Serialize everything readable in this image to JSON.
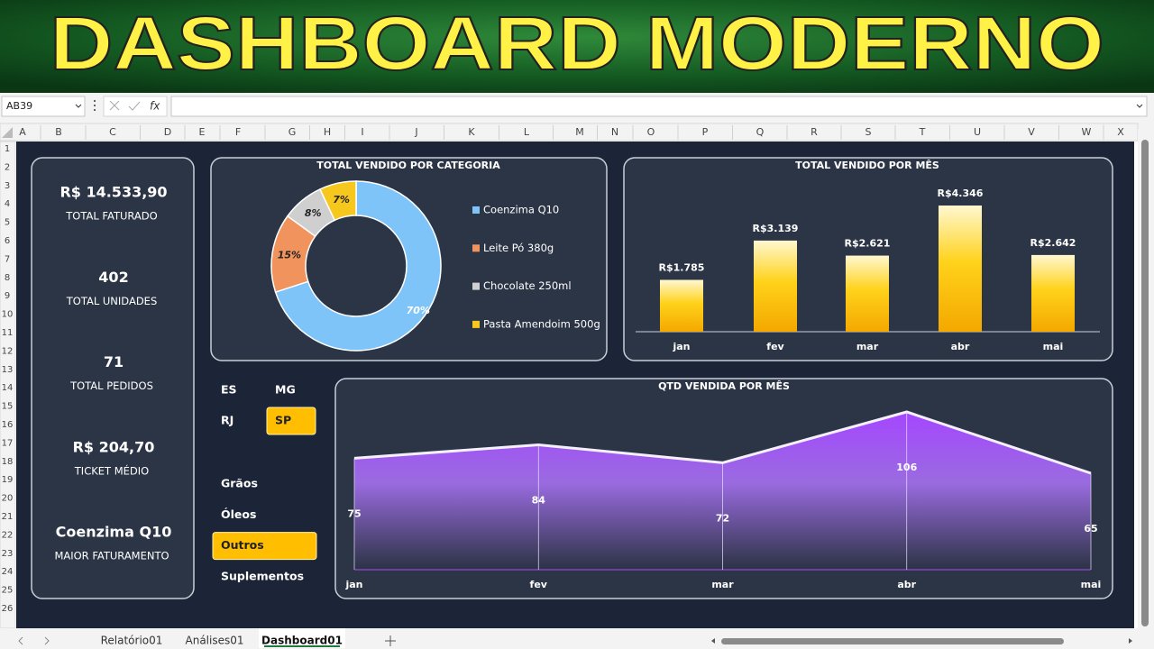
{
  "banner": {
    "title": "DASHBOARD MODERNO"
  },
  "formula_bar": {
    "name_box": "AB39",
    "fx": "fx"
  },
  "columns": [
    "A",
    "B",
    "C",
    "D",
    "E",
    "F",
    "G",
    "H",
    "I",
    "J",
    "K",
    "L",
    "M",
    "N",
    "O",
    "P",
    "Q",
    "R",
    "S",
    "T",
    "U",
    "V",
    "W",
    "X"
  ],
  "rows": [
    1,
    2,
    3,
    4,
    5,
    6,
    7,
    8,
    9,
    10,
    11,
    12,
    13,
    14,
    15,
    16,
    17,
    18,
    19,
    20,
    21,
    22,
    23,
    24,
    25,
    26
  ],
  "kpis": [
    {
      "value": "R$ 14.533,90",
      "label": "TOTAL FATURADO"
    },
    {
      "value": "402",
      "label": "TOTAL UNIDADES"
    },
    {
      "value": "71",
      "label": "TOTAL PEDIDOS"
    },
    {
      "value": "R$ 204,70",
      "label": "TICKET MÉDIO"
    },
    {
      "value": "Coenzima Q10",
      "label": "MAIOR FATURAMENTO"
    }
  ],
  "charts": {
    "category": {
      "type": "pie",
      "title": "TOTAL VENDIDO POR CATEGORIA",
      "categories": [
        "Coenzima Q10",
        "Leite Pó 380g",
        "Chocolate 250ml",
        "Pasta Amendoim 500g"
      ],
      "values": [
        70,
        15,
        8,
        7
      ],
      "value_labels": [
        "70%",
        "15%",
        "8%",
        "7%"
      ],
      "colors": [
        "#7ec4f8",
        "#f0935c",
        "#cfcfcf",
        "#f6c81e"
      ]
    },
    "monthly": {
      "type": "bar",
      "title": "TOTAL VENDIDO POR MÊS",
      "categories": [
        "jan",
        "fev",
        "mar",
        "abr",
        "mai"
      ],
      "values": [
        1785,
        3139,
        2621,
        4346,
        2642
      ],
      "value_labels": [
        "R$1.785",
        "R$3.139",
        "R$2.621",
        "R$4.346",
        "R$2.642"
      ]
    },
    "qty": {
      "type": "area",
      "title": "QTD VENDIDA POR MÊS",
      "categories": [
        "jan",
        "fev",
        "mar",
        "abr",
        "mai"
      ],
      "values": [
        75,
        84,
        72,
        106,
        65
      ]
    }
  },
  "slicers": {
    "states": [
      {
        "label": "ES",
        "selected": false
      },
      {
        "label": "MG",
        "selected": false
      },
      {
        "label": "RJ",
        "selected": false
      },
      {
        "label": "SP",
        "selected": true
      }
    ],
    "categories": [
      {
        "label": "Grãos",
        "selected": false
      },
      {
        "label": "Óleos",
        "selected": false
      },
      {
        "label": "Outros",
        "selected": true
      },
      {
        "label": "Suplementos",
        "selected": false
      }
    ]
  },
  "sheet_tabs": [
    {
      "label": "Relatório01",
      "active": false
    },
    {
      "label": "Análises01",
      "active": false
    },
    {
      "label": "Dashboard01",
      "active": true
    }
  ]
}
